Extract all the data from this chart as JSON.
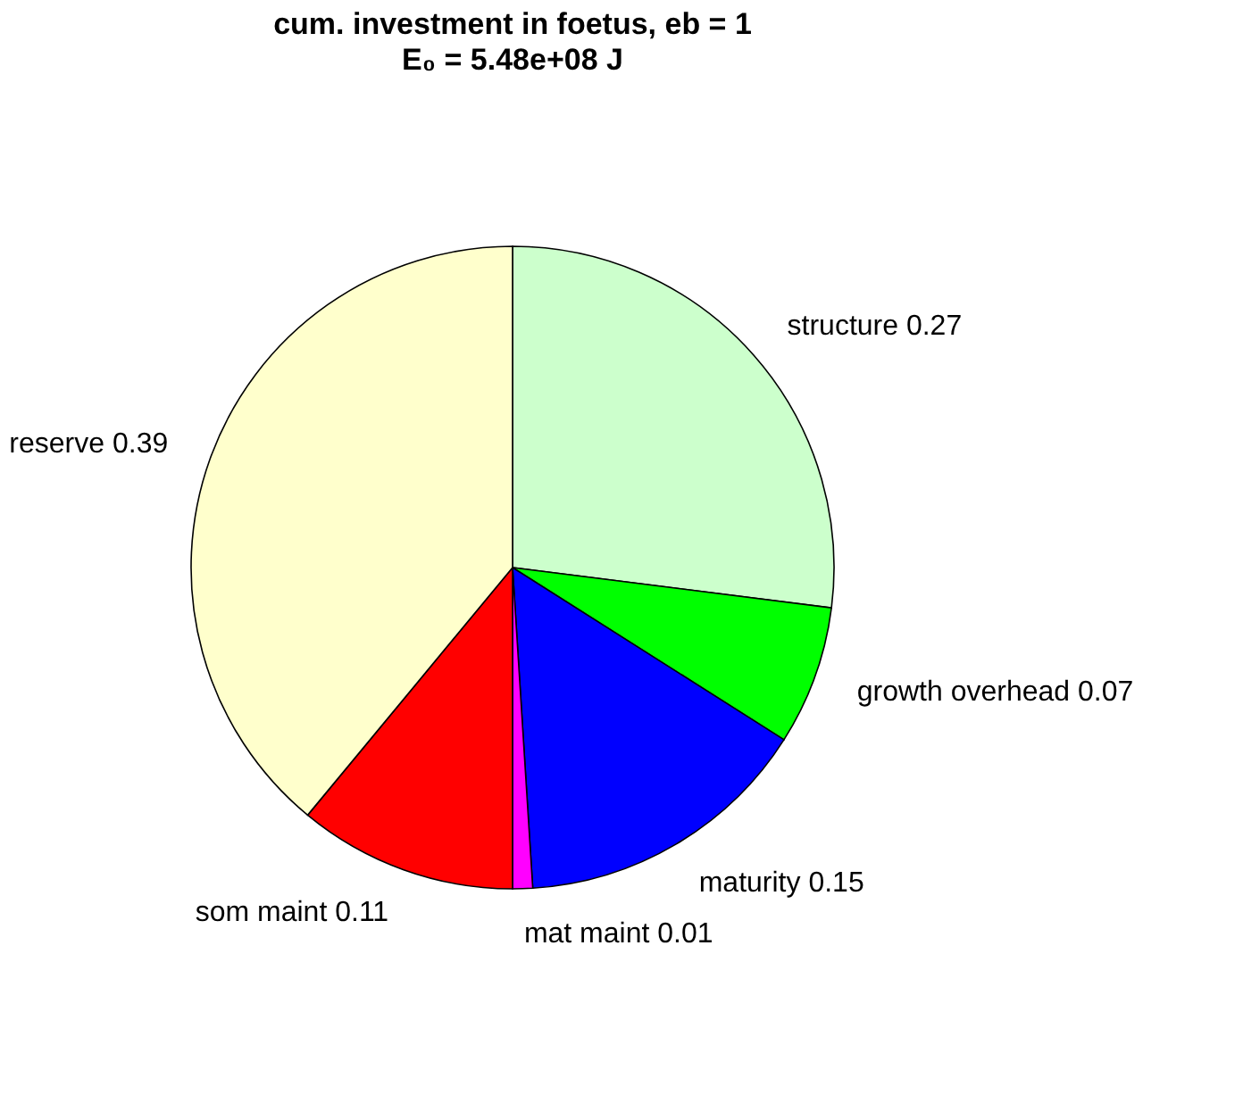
{
  "chart_data": {
    "type": "pie",
    "title": "cum. investment in foetus, eb = 1",
    "subtitle": "E₀ = 5.48e+08 J",
    "categories": [
      "structure 0.27",
      "growth overhead 0.07",
      "maturity 0.15",
      "mat maint 0.01",
      "som maint 0.11",
      "reserve 0.39"
    ],
    "values": [
      0.27,
      0.07,
      0.15,
      0.01,
      0.11,
      0.39
    ],
    "colors": [
      "#ccffcc",
      "#00ff00",
      "#0000ff",
      "#ff00ff",
      "#ff0000",
      "#ffffcc"
    ],
    "legend": false
  }
}
